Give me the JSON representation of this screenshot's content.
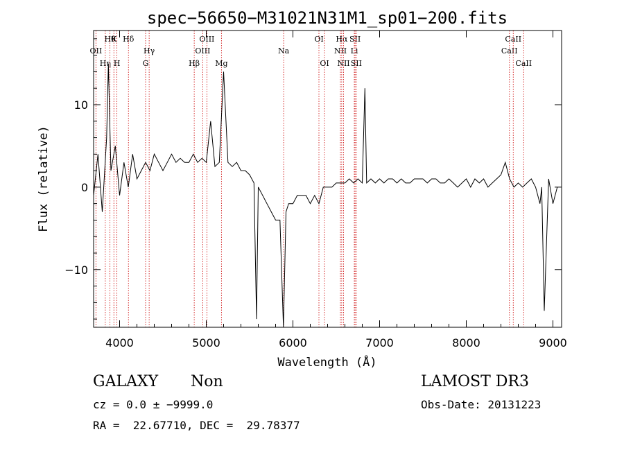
{
  "chart_data": {
    "type": "line",
    "title": "spec−56650−M31021N31M1_sp01−200.fits",
    "xlabel": "Wavelength (Å)",
    "ylabel": "Flux (relative)",
    "xlim": [
      3700,
      9100
    ],
    "ylim": [
      -17,
      19
    ],
    "x_ticks": [
      4000,
      5000,
      6000,
      7000,
      8000,
      9000
    ],
    "y_ticks": [
      -10,
      0,
      10
    ],
    "y_tick_labels": [
      "−10",
      "0",
      "10"
    ],
    "grid": false,
    "line_color": "#000000",
    "marker_color": "#cc0000",
    "series": [
      {
        "x": [
          3700,
          3750,
          3800,
          3850,
          3870,
          3900,
          3950,
          4000,
          4050,
          4100,
          4150,
          4200,
          4250,
          4300,
          4350,
          4400,
          4450,
          4500,
          4550,
          4600,
          4650,
          4700,
          4750,
          4800,
          4850,
          4900,
          4950,
          5000,
          5050,
          5100,
          5150,
          5200,
          5250,
          5300,
          5350,
          5400,
          5450,
          5500,
          5550,
          5580,
          5600,
          5650,
          5700,
          5750,
          5800,
          5850,
          5890,
          5920,
          5950,
          6000,
          6050,
          6100,
          6150,
          6200,
          6250,
          6300,
          6350,
          6400,
          6450,
          6500,
          6550,
          6600,
          6650,
          6700,
          6750,
          6800,
          6830,
          6850,
          6900,
          6950,
          7000,
          7050,
          7100,
          7150,
          7200,
          7250,
          7300,
          7350,
          7400,
          7450,
          7500,
          7550,
          7600,
          7650,
          7700,
          7750,
          7800,
          7850,
          7900,
          7950,
          8000,
          8050,
          8100,
          8150,
          8200,
          8250,
          8300,
          8350,
          8400,
          8450,
          8500,
          8550,
          8600,
          8650,
          8700,
          8750,
          8800,
          8850,
          8870,
          8900,
          8950,
          9000,
          9050
        ],
        "y": [
          -1,
          4,
          -3,
          6,
          15,
          2,
          5,
          -1,
          3,
          0,
          4,
          1,
          2,
          3,
          2,
          4,
          3,
          2,
          3,
          4,
          3,
          3.5,
          3,
          3,
          4,
          3,
          3.5,
          3,
          8,
          2.5,
          3,
          14,
          3,
          2.5,
          3,
          2,
          2,
          1.5,
          0.5,
          -16,
          0,
          -1,
          -2,
          -3,
          -4,
          -4,
          -17,
          -3,
          -2,
          -2,
          -1,
          -1,
          -1,
          -2,
          -1,
          -2,
          0,
          0,
          0,
          0.5,
          0.5,
          0.5,
          1,
          0.5,
          1,
          0.5,
          12,
          0.5,
          1,
          0.5,
          1,
          0.5,
          1,
          1,
          0.5,
          1,
          0.5,
          0.5,
          1,
          1,
          1,
          0.5,
          1,
          1,
          0.5,
          0.5,
          1,
          0.5,
          0,
          0.5,
          1,
          0,
          1,
          0.5,
          1,
          0,
          0.5,
          1,
          1.5,
          3,
          1,
          0,
          0.5,
          0,
          0.5,
          1,
          0,
          -2,
          0,
          -15,
          1,
          -2,
          0
        ]
      }
    ],
    "line_markers": [
      {
        "x": 3727,
        "labels": [
          "OII"
        ],
        "row": 2
      },
      {
        "x": 3835,
        "labels": [
          "Hη"
        ],
        "row": 3
      },
      {
        "x": 3889,
        "labels": [
          "Hθ"
        ],
        "row": 1
      },
      {
        "x": 3934,
        "labels": [
          "K"
        ],
        "row": 1
      },
      {
        "x": 3969,
        "labels": [
          "H"
        ],
        "row": 3
      },
      {
        "x": 4102,
        "labels": [
          "Hδ"
        ],
        "row": 1
      },
      {
        "x": 4300,
        "labels": [
          "G"
        ],
        "row": 3
      },
      {
        "x": 4341,
        "labels": [
          "Hγ"
        ],
        "row": 2
      },
      {
        "x": 4959,
        "labels": [
          "OIII"
        ],
        "row": 2
      },
      {
        "x": 5007,
        "labels": [
          "OIII"
        ],
        "row": 1
      },
      {
        "x": 4861,
        "labels": [
          "Hβ"
        ],
        "row": 3
      },
      {
        "x": 5175,
        "labels": [
          "Mg"
        ],
        "row": 3
      },
      {
        "x": 5893,
        "labels": [
          "Na"
        ],
        "row": 2
      },
      {
        "x": 6300,
        "labels": [
          "OI"
        ],
        "row": 1
      },
      {
        "x": 6364,
        "labels": [
          "OI"
        ],
        "row": 3
      },
      {
        "x": 6548,
        "labels": [
          "NII"
        ],
        "row": 2
      },
      {
        "x": 6563,
        "labels": [
          "Hα"
        ],
        "row": 1
      },
      {
        "x": 6584,
        "labels": [
          "NII"
        ],
        "row": 3
      },
      {
        "x": 6708,
        "labels": [
          "Li"
        ],
        "row": 2
      },
      {
        "x": 6717,
        "labels": [
          "SII"
        ],
        "row": 1
      },
      {
        "x": 6731,
        "labels": [
          "SII"
        ],
        "row": 3
      },
      {
        "x": 8498,
        "labels": [
          "CaII"
        ],
        "row": 2
      },
      {
        "x": 8542,
        "labels": [
          "CaII"
        ],
        "row": 1
      },
      {
        "x": 8662,
        "labels": [
          "CaII"
        ],
        "row": 3
      }
    ]
  },
  "info": {
    "object_class": "GALAXY",
    "subclass": "Non",
    "survey": "LAMOST DR3",
    "redshift_line": "cz = 0.0 ± −9999.0",
    "obs_date_line": "Obs-Date: 20131223",
    "coords_line": "RA =  22.67710, DEC =  29.78377"
  }
}
